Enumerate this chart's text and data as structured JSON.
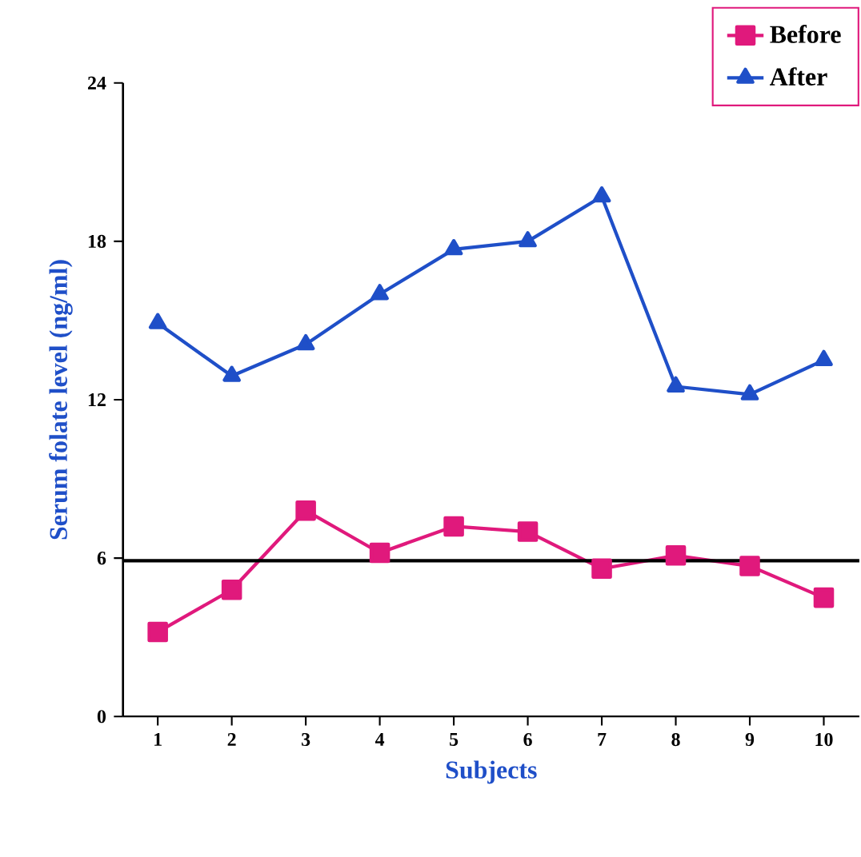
{
  "chart_data": {
    "type": "line",
    "xlabel": "Subjects",
    "ylabel": "Serum folate level (ng/ml)",
    "categories": [
      "1",
      "2",
      "3",
      "4",
      "5",
      "6",
      "7",
      "8",
      "9",
      "10"
    ],
    "series": [
      {
        "name": "Before",
        "color": "#e0197c",
        "marker": "square",
        "values": [
          3.2,
          4.8,
          7.8,
          6.2,
          7.2,
          7.0,
          5.6,
          6.1,
          5.7,
          4.5
        ]
      },
      {
        "name": "After",
        "color": "#1f4fc8",
        "marker": "triangle",
        "values": [
          14.9,
          12.9,
          14.1,
          16.0,
          17.7,
          18.0,
          19.7,
          12.5,
          12.2,
          13.5
        ]
      }
    ],
    "ylim": [
      0,
      24
    ],
    "yticks": [
      0,
      6,
      12,
      18,
      24
    ],
    "ref_lines": [
      {
        "axis": "y",
        "value": 5.9,
        "color": "#000000"
      }
    ],
    "legend": "top right",
    "grid": false,
    "line_style": "solid"
  }
}
